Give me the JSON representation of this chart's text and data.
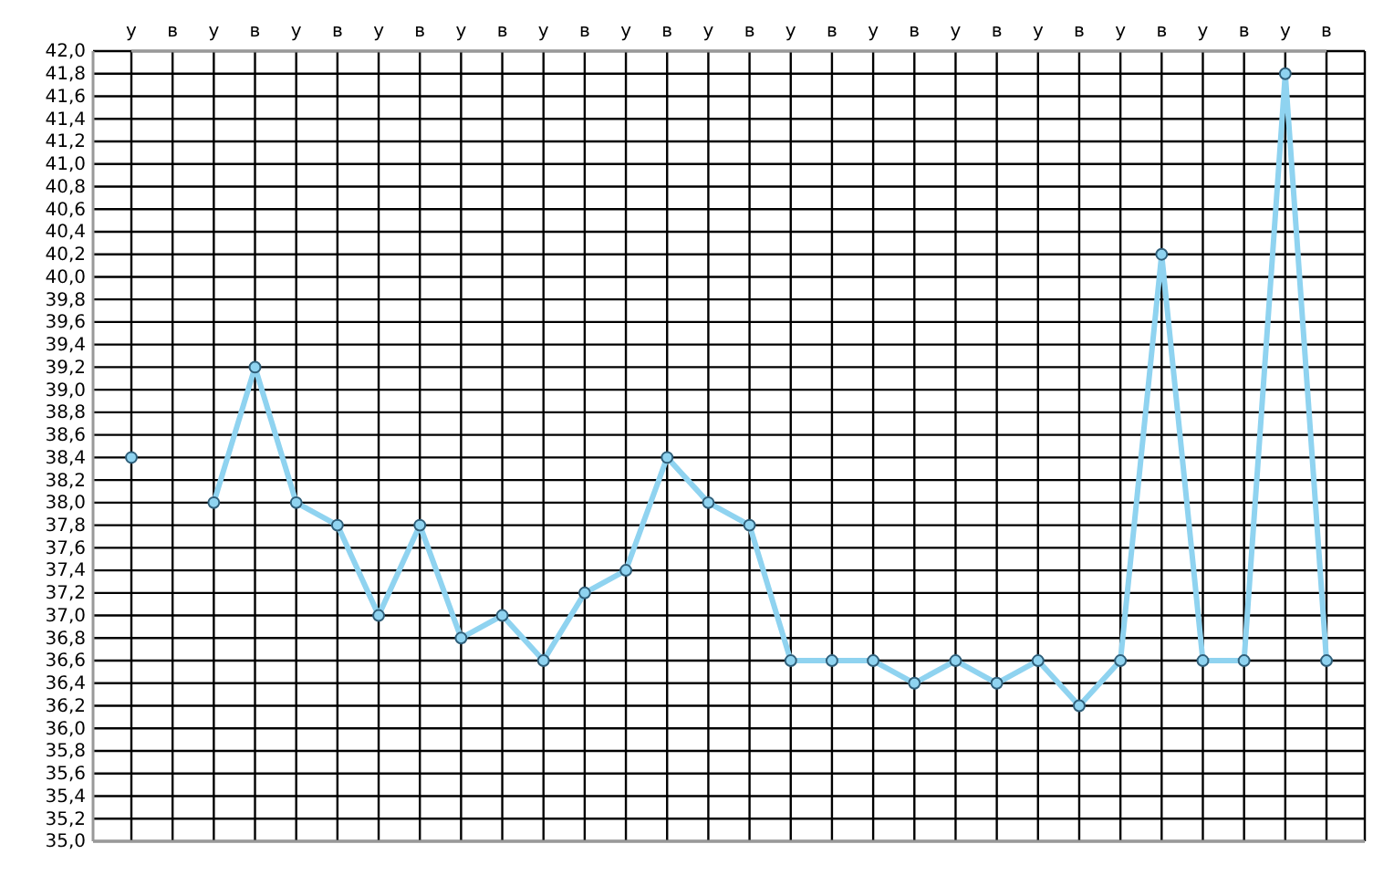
{
  "chart_data": {
    "type": "line",
    "categories": [
      "у",
      "в",
      "у",
      "в",
      "у",
      "в",
      "у",
      "в",
      "у",
      "в",
      "у",
      "в",
      "у",
      "в",
      "у",
      "в",
      "у",
      "в",
      "у",
      "в",
      "у",
      "в",
      "у",
      "в",
      "у",
      "в",
      "у",
      "в",
      "у",
      "в"
    ],
    "series": [
      {
        "color": "#8fd3f0",
        "values": [
          38.4,
          null,
          38.0,
          39.2,
          38.0,
          37.8,
          37.0,
          37.8,
          36.8,
          37.0,
          36.6,
          37.2,
          37.4,
          38.4,
          38.0,
          37.8,
          36.6,
          36.6,
          36.6,
          36.4,
          36.6,
          36.4,
          36.6,
          36.2,
          36.6,
          40.2,
          36.6,
          36.6,
          41.8,
          36.6
        ]
      }
    ],
    "ylim": [
      35.0,
      42.0
    ],
    "yticks": [
      {
        "value": 35.0,
        "label": "35,0"
      },
      {
        "value": 35.2,
        "label": "35,2"
      },
      {
        "value": 35.4,
        "label": "35,4"
      },
      {
        "value": 35.6,
        "label": "35,6"
      },
      {
        "value": 35.8,
        "label": "35,8"
      },
      {
        "value": 36.0,
        "label": "36,0"
      },
      {
        "value": 36.2,
        "label": "36,2"
      },
      {
        "value": 36.4,
        "label": "36,4"
      },
      {
        "value": 36.6,
        "label": "36,6"
      },
      {
        "value": 36.8,
        "label": "36,8"
      },
      {
        "value": 37.0,
        "label": "37,0"
      },
      {
        "value": 37.2,
        "label": "37,2"
      },
      {
        "value": 37.4,
        "label": "37,4"
      },
      {
        "value": 37.6,
        "label": "37,6"
      },
      {
        "value": 37.8,
        "label": "37,8"
      },
      {
        "value": 38.0,
        "label": "38,0"
      },
      {
        "value": 38.2,
        "label": "38,2"
      },
      {
        "value": 38.4,
        "label": "38,4"
      },
      {
        "value": 38.6,
        "label": "38,6"
      },
      {
        "value": 38.8,
        "label": "38,8"
      },
      {
        "value": 39.0,
        "label": "39,0"
      },
      {
        "value": 39.2,
        "label": "39,2"
      },
      {
        "value": 39.4,
        "label": "39,4"
      },
      {
        "value": 39.6,
        "label": "39,6"
      },
      {
        "value": 39.8,
        "label": "39,8"
      },
      {
        "value": 40.0,
        "label": "40,0"
      },
      {
        "value": 40.2,
        "label": "40,2"
      },
      {
        "value": 40.4,
        "label": "40,4"
      },
      {
        "value": 40.6,
        "label": "40,6"
      },
      {
        "value": 40.8,
        "label": "40,8"
      },
      {
        "value": 41.0,
        "label": "41,0"
      },
      {
        "value": 41.2,
        "label": "41,2"
      },
      {
        "value": 41.4,
        "label": "41,4"
      },
      {
        "value": 41.6,
        "label": "41,6"
      },
      {
        "value": 41.8,
        "label": "41,8"
      },
      {
        "value": 42.0,
        "label": "42,0"
      }
    ],
    "grid": true,
    "marker": "circle",
    "line_style": "solid"
  }
}
